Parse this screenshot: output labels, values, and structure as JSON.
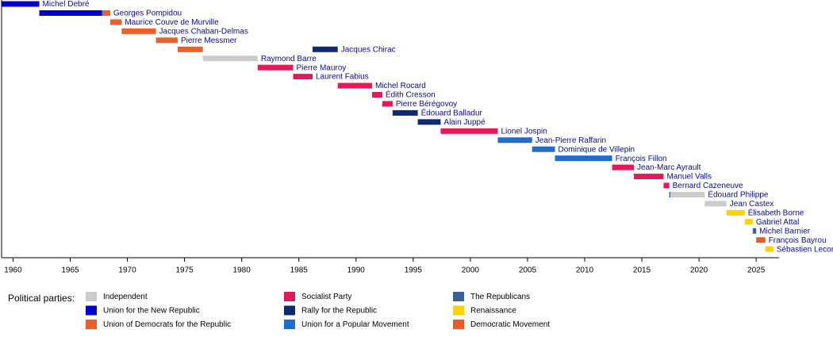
{
  "chart_data": {
    "type": "timeline",
    "xlim": [
      1959,
      2027
    ],
    "xticks": [
      1960,
      1965,
      1970,
      1975,
      1980,
      1985,
      1990,
      1995,
      2000,
      2005,
      2010,
      2015,
      2020,
      2025
    ],
    "legend_title": "Political parties:",
    "parties": [
      {
        "name": "Independent",
        "color": "#cccccc"
      },
      {
        "name": "Union for the New Republic",
        "color": "#0000cd"
      },
      {
        "name": "Union of Democrats for the Republic",
        "color": "#e8602c"
      },
      {
        "name": "Socialist Party",
        "color": "#e3195a"
      },
      {
        "name": "Rally for the Republic",
        "color": "#0d2a70"
      },
      {
        "name": "Union for a Popular Movement",
        "color": "#1e6fcc"
      },
      {
        "name": "The Republicans",
        "color": "#3a5f94"
      },
      {
        "name": "Renaissance",
        "color": "#ffd300"
      },
      {
        "name": "Democratic Movement",
        "color": "#e85a29"
      }
    ],
    "rows": [
      {
        "label": "Michel Debré",
        "spans": [
          {
            "start": 1959.0,
            "end": 1962.3,
            "color": "#0000cd"
          }
        ]
      },
      {
        "label": "Georges Pompidou",
        "spans": [
          {
            "start": 1962.3,
            "end": 1967.8,
            "color": "#0000cd"
          },
          {
            "start": 1967.8,
            "end": 1968.5,
            "color": "#e8602c"
          }
        ]
      },
      {
        "label": "Maurice Couve de Murville",
        "spans": [
          {
            "start": 1968.5,
            "end": 1969.5,
            "color": "#e8602c"
          }
        ]
      },
      {
        "label": "Jacques Chaban-Delmas",
        "spans": [
          {
            "start": 1969.5,
            "end": 1972.5,
            "color": "#e8602c"
          }
        ]
      },
      {
        "label": "Pierre Messmer",
        "spans": [
          {
            "start": 1972.5,
            "end": 1974.4,
            "color": "#e8602c"
          }
        ]
      },
      {
        "label": "Jacques Chirac",
        "spans": [
          {
            "start": 1974.4,
            "end": 1976.6,
            "color": "#e8602c"
          },
          {
            "start": 1986.2,
            "end": 1988.4,
            "color": "#0d2a70"
          }
        ]
      },
      {
        "label": "Raymond Barre",
        "spans": [
          {
            "start": 1976.6,
            "end": 1981.4,
            "color": "#cccccc"
          }
        ]
      },
      {
        "label": "Pierre Mauroy",
        "spans": [
          {
            "start": 1981.4,
            "end": 1984.5,
            "color": "#e3195a"
          }
        ]
      },
      {
        "label": "Laurent Fabius",
        "spans": [
          {
            "start": 1984.5,
            "end": 1986.2,
            "color": "#e3195a"
          }
        ]
      },
      {
        "label": "Michel Rocard",
        "spans": [
          {
            "start": 1988.4,
            "end": 1991.4,
            "color": "#e3195a"
          }
        ]
      },
      {
        "label": "Édith Cresson",
        "spans": [
          {
            "start": 1991.4,
            "end": 1992.3,
            "color": "#e3195a"
          }
        ]
      },
      {
        "label": "Pierre Bérégovoy",
        "spans": [
          {
            "start": 1992.3,
            "end": 1993.2,
            "color": "#e3195a"
          }
        ]
      },
      {
        "label": "Édouard Balladur",
        "spans": [
          {
            "start": 1993.2,
            "end": 1995.4,
            "color": "#0d2a70"
          }
        ]
      },
      {
        "label": "Alain Juppé",
        "spans": [
          {
            "start": 1995.4,
            "end": 1997.4,
            "color": "#0d2a70"
          }
        ]
      },
      {
        "label": "Lionel Jospin",
        "spans": [
          {
            "start": 1997.4,
            "end": 2002.4,
            "color": "#e3195a"
          }
        ]
      },
      {
        "label": "Jean-Pierre Raffarin",
        "spans": [
          {
            "start": 2002.4,
            "end": 2005.4,
            "color": "#1e6fcc"
          }
        ]
      },
      {
        "label": "Dominique de Villepin",
        "spans": [
          {
            "start": 2005.4,
            "end": 2007.4,
            "color": "#1e6fcc"
          }
        ]
      },
      {
        "label": "François Fillon",
        "spans": [
          {
            "start": 2007.4,
            "end": 2012.4,
            "color": "#1e6fcc"
          }
        ]
      },
      {
        "label": "Jean-Marc Ayrault",
        "spans": [
          {
            "start": 2012.4,
            "end": 2014.3,
            "color": "#e3195a"
          }
        ]
      },
      {
        "label": "Manuel Valls",
        "spans": [
          {
            "start": 2014.3,
            "end": 2016.9,
            "color": "#e3195a"
          }
        ]
      },
      {
        "label": "Bernard Cazeneuve",
        "spans": [
          {
            "start": 2016.9,
            "end": 2017.4,
            "color": "#e3195a"
          }
        ]
      },
      {
        "label": "Édouard Philippe",
        "spans": [
          {
            "start": 2017.4,
            "end": 2017.5,
            "color": "#3a5f94"
          },
          {
            "start": 2017.5,
            "end": 2020.5,
            "color": "#cccccc"
          }
        ]
      },
      {
        "label": "Jean Castex",
        "spans": [
          {
            "start": 2020.5,
            "end": 2022.4,
            "color": "#cccccc"
          }
        ]
      },
      {
        "label": "Élisabeth Borne",
        "spans": [
          {
            "start": 2022.4,
            "end": 2024.0,
            "color": "#ffd300"
          }
        ]
      },
      {
        "label": "Gabriel Attal",
        "spans": [
          {
            "start": 2024.0,
            "end": 2024.7,
            "color": "#ffd300"
          }
        ]
      },
      {
        "label": "Michel Barnier",
        "spans": [
          {
            "start": 2024.7,
            "end": 2025.0,
            "color": "#3a5f94"
          }
        ]
      },
      {
        "label": "François Bayrou",
        "spans": [
          {
            "start": 2025.0,
            "end": 2025.8,
            "color": "#e85a29"
          }
        ]
      },
      {
        "label": "Sébastien Lecornu",
        "spans": [
          {
            "start": 2025.8,
            "end": 2026.5,
            "color": "#ffd300"
          }
        ]
      }
    ]
  }
}
